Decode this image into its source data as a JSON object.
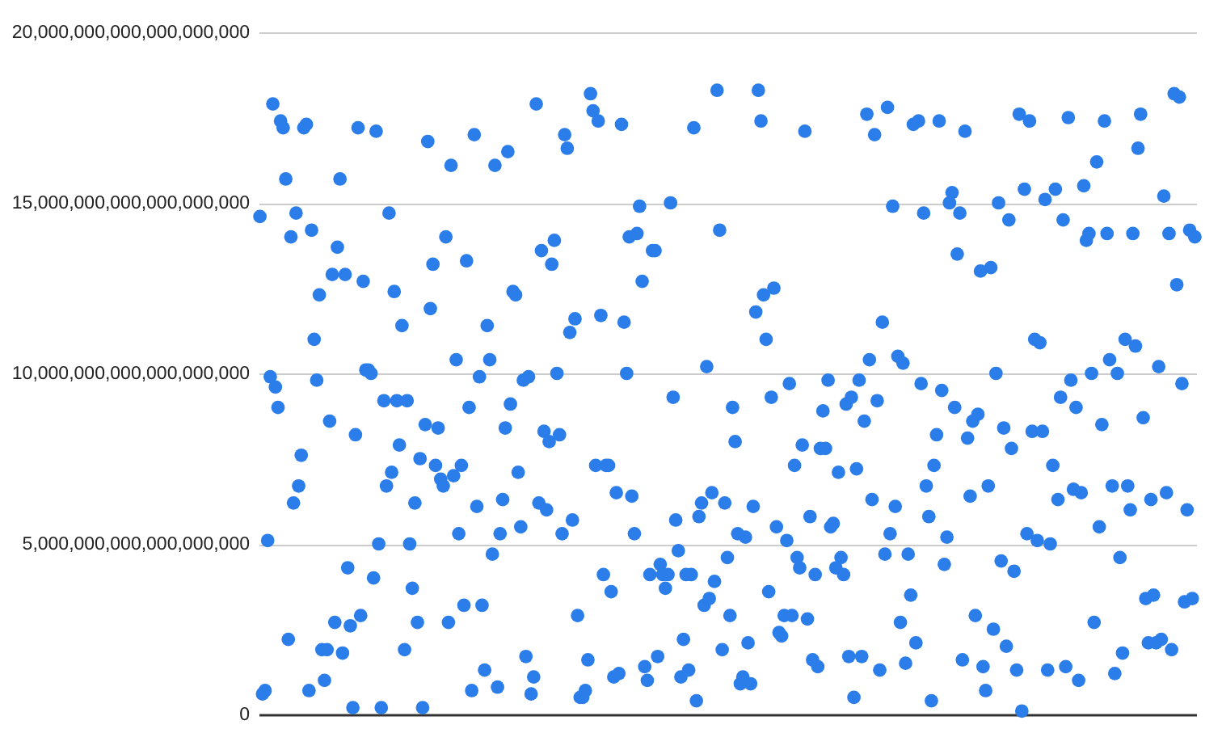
{
  "chart_data": {
    "type": "scatter",
    "color": "#2b7de9",
    "marker": "circle",
    "grid": "y",
    "tick_labels": "y",
    "ylim": [
      0,
      2e+19
    ],
    "yticks": [
      0,
      {
        "value": 5e+18,
        "label": "5,000,000,000,000,000,000"
      },
      {
        "value": 1e+19,
        "label": "10,000,000,000,000,000,000"
      },
      {
        "value": 1.5e+19,
        "label": "15,000,000,000,000,000,000"
      },
      {
        "value": 2e+19,
        "label": "20,000,000,000,000,000,000"
      }
    ],
    "categories": [
      null,
      null,
      null,
      null,
      null,
      null,
      null,
      null,
      null,
      null,
      null,
      null,
      null,
      null,
      null,
      null,
      null,
      null,
      null,
      null,
      null,
      null,
      null,
      null,
      null,
      null,
      null,
      null,
      null,
      null,
      null,
      null,
      null,
      null,
      null,
      null,
      null,
      null,
      null,
      null,
      null,
      null,
      null,
      null,
      null,
      null,
      null,
      null,
      null,
      null,
      null,
      null,
      null,
      null,
      null,
      null,
      null,
      null,
      null,
      null,
      null,
      null,
      null,
      null,
      null,
      null,
      null,
      null,
      null,
      null,
      null,
      null,
      null,
      null,
      null,
      null,
      null,
      null,
      null,
      null,
      null,
      null,
      null,
      null,
      null,
      null,
      null,
      null,
      null,
      null,
      null,
      null,
      null,
      null,
      null,
      null,
      null,
      null,
      null,
      null,
      null,
      null,
      null,
      null,
      null,
      null,
      null,
      null,
      null,
      null,
      null,
      null,
      null,
      null,
      null,
      null,
      null,
      null,
      null,
      null,
      null,
      null,
      null,
      null,
      null,
      null,
      null,
      null,
      null,
      null,
      null,
      null,
      null,
      null,
      null,
      null,
      null,
      null,
      null,
      null,
      null,
      null,
      null,
      null,
      null,
      null,
      null,
      null,
      null,
      null,
      null,
      null,
      null,
      null,
      null,
      null,
      null,
      null,
      null,
      null,
      null,
      null,
      null,
      null,
      null,
      null,
      null,
      null,
      null,
      null,
      null,
      null,
      null,
      null,
      null,
      null,
      null,
      null,
      null,
      null,
      null,
      null,
      null,
      null,
      null,
      null,
      null,
      null,
      null,
      null,
      null,
      null,
      null,
      null,
      null,
      null,
      null,
      null,
      null,
      null,
      null,
      null,
      null,
      null,
      null,
      null,
      null,
      null,
      null,
      null,
      null,
      null,
      null,
      null,
      null,
      null,
      null,
      null,
      null,
      null,
      null,
      null,
      null,
      null,
      null,
      null,
      null,
      null,
      null,
      null,
      null,
      null,
      null,
      null,
      null,
      null,
      null,
      null,
      null,
      null,
      null,
      null,
      null,
      null,
      null,
      null,
      null,
      null,
      null,
      null,
      null,
      null,
      null,
      null,
      null,
      null,
      null,
      null,
      null,
      null,
      null,
      null,
      null,
      null,
      null,
      null,
      null,
      null,
      null,
      null,
      null,
      null,
      null,
      null,
      null,
      null,
      null,
      null,
      null,
      null,
      null,
      null,
      null,
      null,
      null,
      null,
      null,
      null,
      null,
      null,
      null,
      null,
      null,
      null,
      null,
      null,
      null,
      null,
      null,
      null,
      null,
      null,
      null,
      null,
      null,
      null,
      null,
      null,
      null,
      null,
      null,
      null,
      null,
      null,
      null,
      null,
      null,
      null,
      null,
      null,
      null,
      null,
      null,
      null,
      null,
      null,
      null,
      null,
      null,
      null,
      null,
      null,
      null,
      null,
      null,
      null,
      null,
      null,
      null,
      null,
      null,
      null,
      null,
      null,
      null,
      null,
      null,
      null,
      null,
      null,
      null,
      null,
      null,
      null,
      null,
      null,
      null,
      null,
      null,
      null,
      null,
      null,
      null
    ],
    "values": [
      1.46e+19,
      6e+17,
      7e+17,
      5.1e+18,
      9.9e+18,
      1.79e+19,
      9.6e+18,
      9e+18,
      1.74e+19,
      1.72e+19,
      1.57e+19,
      2.2e+18,
      1.4e+19,
      6.2e+18,
      1.47e+19,
      6.7e+18,
      7.6e+18,
      1.72e+19,
      1.73e+19,
      7e+17,
      1.42e+19,
      1.1e+19,
      9.8e+18,
      1.23e+19,
      1.9e+18,
      1e+18,
      1.9e+18,
      8.6e+18,
      1.29e+19,
      2.7e+18,
      1.37e+19,
      1.57e+19,
      1.8e+18,
      1.29e+19,
      4.3e+18,
      2.6e+18,
      2e+17,
      8.2e+18,
      1.72e+19,
      2.9e+18,
      1.27e+19,
      1.01e+19,
      1.01e+19,
      1e+19,
      4e+18,
      1.71e+19,
      5e+18,
      2e+17,
      9.2e+18,
      6.7e+18,
      1.47e+19,
      7.1e+18,
      1.24e+19,
      9.2e+18,
      7.9e+18,
      1.14e+19,
      1.9e+18,
      9.2e+18,
      5e+18,
      3.7e+18,
      6.2e+18,
      2.7e+18,
      7.5e+18,
      2e+17,
      8.5e+18,
      1.68e+19,
      1.19e+19,
      1.32e+19,
      7.3e+18,
      8.4e+18,
      6.9e+18,
      6.7e+18,
      1.4e+19,
      2.7e+18,
      1.61e+19,
      7e+18,
      1.04e+19,
      5.3e+18,
      7.3e+18,
      3.2e+18,
      1.33e+19,
      9e+18,
      7e+17,
      1.7e+19,
      6.1e+18,
      9.9e+18,
      3.2e+18,
      1.3e+18,
      1.14e+19,
      1.04e+19,
      4.7e+18,
      1.61e+19,
      8e+17,
      5.3e+18,
      6.3e+18,
      8.4e+18,
      1.65e+19,
      9.1e+18,
      1.24e+19,
      1.23e+19,
      7.1e+18,
      5.5e+18,
      9.8e+18,
      1.7e+18,
      9.9e+18,
      6e+17,
      1.1e+18,
      1.79e+19,
      6.2e+18,
      1.36e+19,
      8.3e+18,
      6e+18,
      8e+18,
      1.32e+19,
      1.39e+19,
      1e+19,
      8.2e+18,
      5.3e+18,
      1.7e+19,
      1.66e+19,
      1.12e+19,
      5.7e+18,
      1.16e+19,
      2.9e+18,
      5e+17,
      5e+17,
      7e+17,
      1.6e+18,
      1.82e+19,
      1.77e+19,
      7.3e+18,
      1.74e+19,
      1.17e+19,
      4.1e+18,
      7.3e+18,
      7.3e+18,
      3.6e+18,
      1.1e+18,
      6.5e+18,
      1.2e+18,
      1.73e+19,
      1.15e+19,
      1e+19,
      1.4e+19,
      6.4e+18,
      5.3e+18,
      1.41e+19,
      1.49e+19,
      1.27e+19,
      1.4e+18,
      1e+18,
      4.1e+18,
      1.36e+19,
      1.36e+19,
      1.7e+18,
      4.4e+18,
      4.1e+18,
      3.7e+18,
      4.1e+18,
      1.5e+19,
      9.3e+18,
      5.7e+18,
      4.8e+18,
      1.1e+18,
      2.2e+18,
      4.1e+18,
      1.3e+18,
      4.1e+18,
      1.72e+19,
      4e+17,
      5.8e+18,
      6.2e+18,
      3.2e+18,
      1.02e+19,
      3.4e+18,
      6.5e+18,
      3.9e+18,
      1.83e+19,
      1.42e+19,
      1.9e+18,
      6.2e+18,
      4.6e+18,
      2.9e+18,
      9e+18,
      8e+18,
      5.3e+18,
      9e+17,
      1.1e+18,
      5.2e+18,
      2.1e+18,
      9e+17,
      6.1e+18,
      1.18e+19,
      1.83e+19,
      1.74e+19,
      1.23e+19,
      1.1e+19,
      3.6e+18,
      9.3e+18,
      1.25e+19,
      5.5e+18,
      2.4e+18,
      2.3e+18,
      2.9e+18,
      5.1e+18,
      9.7e+18,
      2.9e+18,
      7.3e+18,
      4.6e+18,
      4.3e+18,
      7.9e+18,
      1.71e+19,
      2.8e+18,
      5.8e+18,
      1.6e+18,
      4.1e+18,
      1.4e+18,
      7.8e+18,
      8.9e+18,
      7.8e+18,
      9.8e+18,
      5.5e+18,
      5.6e+18,
      4.3e+18,
      7.1e+18,
      4.6e+18,
      4.1e+18,
      9.1e+18,
      1.7e+18,
      9.3e+18,
      5e+17,
      7.2e+18,
      9.8e+18,
      1.7e+18,
      8.6e+18,
      1.76e+19,
      1.04e+19,
      6.3e+18,
      1.7e+19,
      9.2e+18,
      1.3e+18,
      1.15e+19,
      4.7e+18,
      1.78e+19,
      5.3e+18,
      1.49e+19,
      6.1e+18,
      1.05e+19,
      2.7e+18,
      1.03e+19,
      1.5e+18,
      4.7e+18,
      3.5e+18,
      1.73e+19,
      2.1e+18,
      1.74e+19,
      9.7e+18,
      1.47e+19,
      6.7e+18,
      5.8e+18,
      4e+17,
      7.3e+18,
      8.2e+18,
      1.74e+19,
      9.5e+18,
      4.4e+18,
      5.2e+18,
      1.5e+19,
      1.53e+19,
      9e+18,
      1.35e+19,
      1.47e+19,
      1.6e+18,
      1.71e+19,
      8.1e+18,
      6.4e+18,
      8.6e+18,
      2.9e+18,
      8.8e+18,
      1.3e+19,
      1.4e+18,
      7e+17,
      6.7e+18,
      1.31e+19,
      2.5e+18,
      1e+19,
      1.5e+19,
      4.5e+18,
      8.4e+18,
      2e+18,
      1.45e+19,
      7.8e+18,
      4.2e+18,
      1.3e+18,
      1.76e+19,
      1e+17,
      1.54e+19,
      5.3e+18,
      1.74e+19,
      8.3e+18,
      1.1e+19,
      5.1e+18,
      1.09e+19,
      8.3e+18,
      1.51e+19,
      1.3e+18,
      5e+18,
      7.3e+18,
      1.54e+19,
      6.3e+18,
      9.3e+18,
      1.45e+19,
      1.4e+18,
      1.75e+19,
      9.8e+18,
      6.6e+18,
      9e+18,
      1e+18,
      6.5e+18,
      1.55e+19,
      1.39e+19,
      1.41e+19,
      1e+19,
      2.7e+18,
      1.62e+19,
      5.5e+18,
      8.5e+18,
      1.74e+19,
      1.41e+19,
      1.04e+19,
      6.7e+18,
      1.2e+18,
      1e+19,
      4.6e+18,
      1.8e+18,
      1.1e+19,
      6.7e+18,
      6e+18,
      1.41e+19,
      1.08e+19,
      1.66e+19,
      1.76e+19,
      8.7e+18,
      3.4e+18,
      2.1e+18,
      6.3e+18,
      3.5e+18,
      2.1e+18,
      1.02e+19,
      2.2e+18,
      1.52e+19,
      6.5e+18,
      1.41e+19,
      1.9e+18,
      1.82e+19,
      1.26e+19,
      1.81e+19,
      9.7e+18,
      3.3e+18,
      6e+18,
      1.42e+19,
      3.4e+18,
      1.4e+19
    ]
  }
}
